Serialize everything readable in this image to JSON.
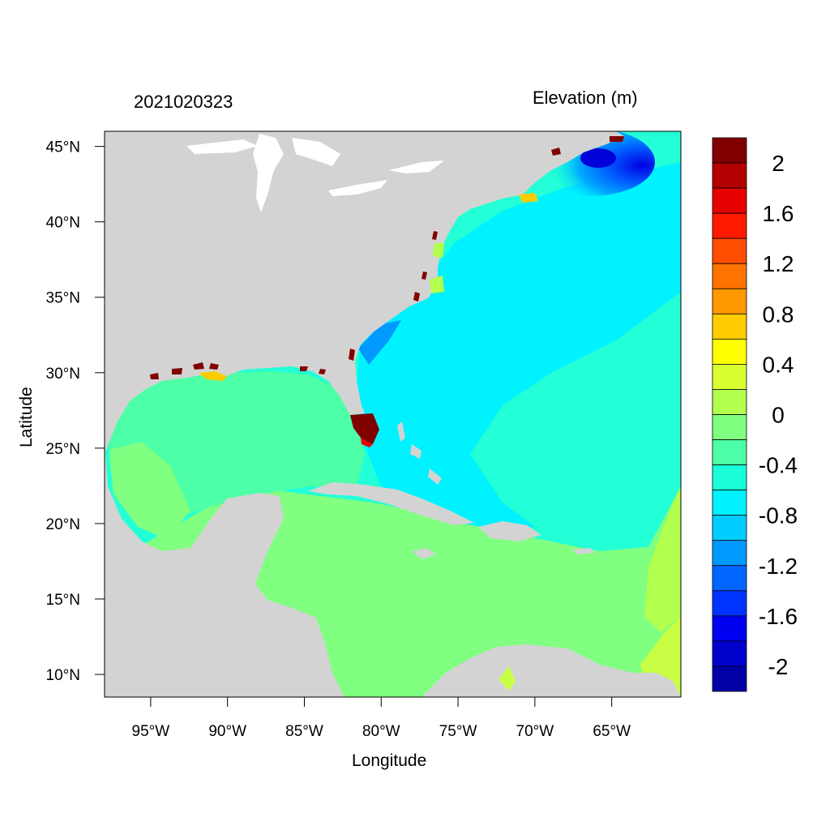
{
  "header": {
    "date_label": "2021020323",
    "variable_label": "Elevation (m)"
  },
  "axes": {
    "xlabel": "Longitude",
    "ylabel": "Latitude",
    "lon_range": [
      -98,
      -60.5
    ],
    "lat_range": [
      8.5,
      46
    ],
    "x_ticks": [
      {
        "value": -95,
        "label": "95°W"
      },
      {
        "value": -90,
        "label": "90°W"
      },
      {
        "value": -85,
        "label": "85°W"
      },
      {
        "value": -80,
        "label": "80°W"
      },
      {
        "value": -75,
        "label": "75°W"
      },
      {
        "value": -70,
        "label": "70°W"
      },
      {
        "value": -65,
        "label": "65°W"
      }
    ],
    "y_ticks": [
      {
        "value": 45,
        "label": "45°N"
      },
      {
        "value": 40,
        "label": "40°N"
      },
      {
        "value": 35,
        "label": "35°N"
      },
      {
        "value": 30,
        "label": "30°N"
      },
      {
        "value": 25,
        "label": "25°N"
      },
      {
        "value": 20,
        "label": "20°N"
      },
      {
        "value": 15,
        "label": "15°N"
      },
      {
        "value": 10,
        "label": "10°N"
      }
    ]
  },
  "colors": {
    "land": "#d3d3d3",
    "lakes": "#ffffff"
  },
  "colorbar": {
    "levels": [
      {
        "color": "#800000"
      },
      {
        "color": "#b30000"
      },
      {
        "color": "#e60000"
      },
      {
        "color": "#ff1a00"
      },
      {
        "color": "#ff4d00"
      },
      {
        "color": "#ff7300"
      },
      {
        "color": "#ff9900"
      },
      {
        "color": "#ffcc00"
      },
      {
        "color": "#ffff00"
      },
      {
        "color": "#d9ff33"
      },
      {
        "color": "#b3ff4d"
      },
      {
        "color": "#80ff80"
      },
      {
        "color": "#4dffa6"
      },
      {
        "color": "#1affd9"
      },
      {
        "color": "#00f2ff"
      },
      {
        "color": "#00ccff"
      },
      {
        "color": "#0099ff"
      },
      {
        "color": "#0066ff"
      },
      {
        "color": "#0033ff"
      },
      {
        "color": "#0000f0"
      },
      {
        "color": "#0000cc"
      },
      {
        "color": "#0000a6"
      }
    ],
    "labels": [
      "2",
      "1.6",
      "1.2",
      "0.8",
      "0.4",
      "0",
      "-0.4",
      "-0.8",
      "-1.2",
      "-1.6",
      "-2"
    ]
  }
}
